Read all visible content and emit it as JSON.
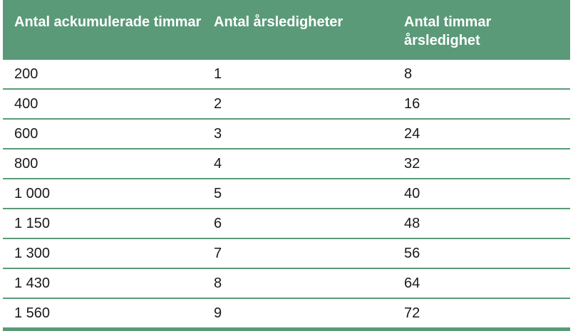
{
  "table": {
    "headers": [
      "Antal ackumulerade timmar",
      "Antal årsledigheter",
      "Antal timmar årsledighet"
    ],
    "rows": [
      [
        "200",
        "1",
        "8"
      ],
      [
        "400",
        "2",
        "16"
      ],
      [
        "600",
        "3",
        "24"
      ],
      [
        "800",
        "4",
        "32"
      ],
      [
        "1 000",
        "5",
        "40"
      ],
      [
        "1 150",
        "6",
        "48"
      ],
      [
        "1 300",
        "7",
        "56"
      ],
      [
        "1 430",
        "8",
        "64"
      ],
      [
        "1 560",
        "9",
        "72"
      ]
    ]
  },
  "colors": {
    "header_bg": "#5a9a78",
    "header_text": "#ffffff",
    "rule": "#5a9a78"
  }
}
